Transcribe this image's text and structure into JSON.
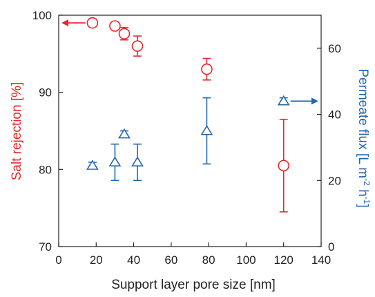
{
  "chart_data": {
    "type": "scatter",
    "xlabel": "Support layer pore size [nm]",
    "ylabel": "Salt rejection [%]",
    "y2label_parts": [
      "Permeate flux [L m",
      "-2",
      " h",
      "-1",
      "]"
    ],
    "xlim": [
      0,
      140
    ],
    "ylim": [
      70,
      100
    ],
    "y2lim": [
      0,
      70
    ],
    "xticks": [
      0,
      20,
      40,
      60,
      80,
      100,
      120,
      140
    ],
    "yticks": [
      70,
      80,
      90,
      100
    ],
    "y2ticks": [
      0,
      20,
      40,
      60
    ],
    "grid": false,
    "series": [
      {
        "axis": "left",
        "marker": "circle",
        "color": "#e8262a",
        "points": [
          {
            "x": 18,
            "y": 99.0,
            "err": 0.5
          },
          {
            "x": 30,
            "y": 98.6,
            "err": 0.5
          },
          {
            "x": 35,
            "y": 97.6,
            "err": 0.8
          },
          {
            "x": 42,
            "y": 96.0,
            "err": 1.3
          },
          {
            "x": 79,
            "y": 93.0,
            "err": 1.4
          },
          {
            "x": 120,
            "y": 80.5,
            "err": 6.0
          }
        ]
      },
      {
        "axis": "right",
        "marker": "triangle",
        "color": "#2066b0",
        "points": [
          {
            "x": 18,
            "y": 24.5,
            "err": 1.0
          },
          {
            "x": 30,
            "y": 25.5,
            "err": 5.5
          },
          {
            "x": 35,
            "y": 34.0,
            "err": 1.0
          },
          {
            "x": 42,
            "y": 25.5,
            "err": 5.5
          },
          {
            "x": 79,
            "y": 35.0,
            "err": 10.0
          },
          {
            "x": 120,
            "y": 44.0,
            "err": 1.0
          }
        ]
      }
    ],
    "axis_indicators": [
      {
        "series": 0,
        "direction": "left"
      },
      {
        "series": 1,
        "direction": "right"
      }
    ]
  }
}
